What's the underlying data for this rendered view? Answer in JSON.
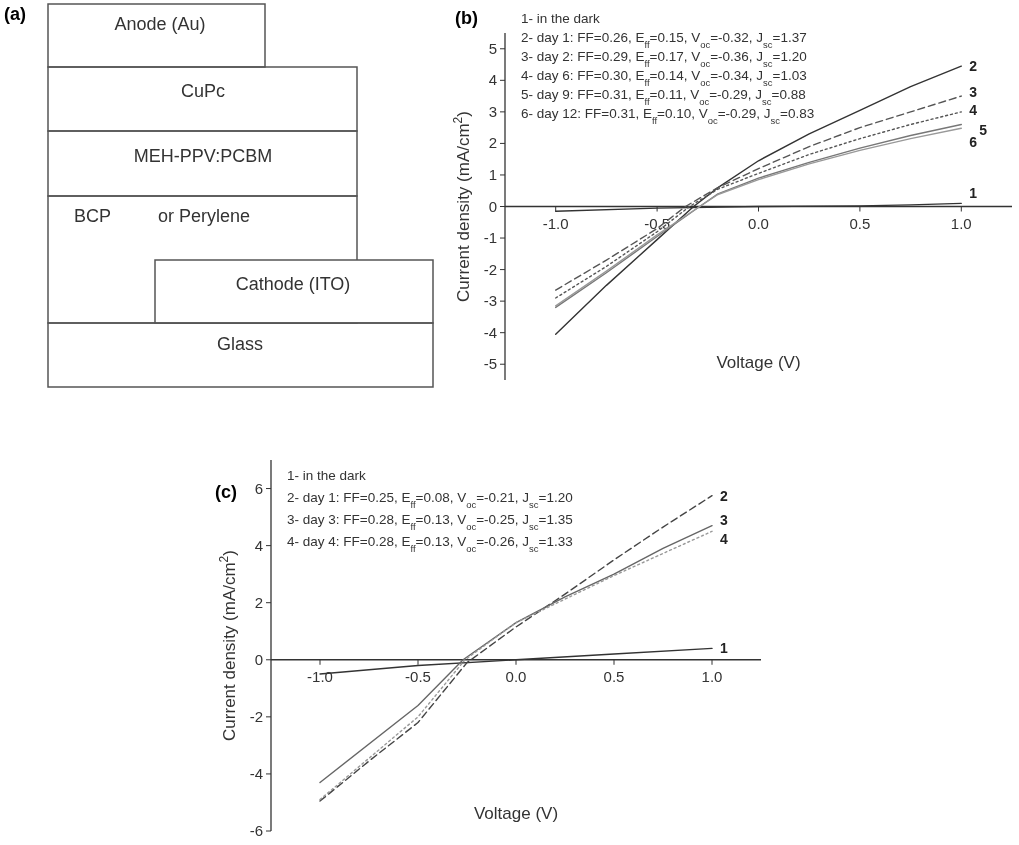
{
  "chart_data": [
    {
      "type": "other",
      "title": "(a)",
      "annotations": [
        "Anode (Au)",
        "CuPc",
        "MEH-PPV:PCBM",
        "BCP",
        "or Perylene",
        "Cathode (ITO)",
        "Glass"
      ]
    },
    {
      "type": "line",
      "title": "(b)",
      "xlabel": "Voltage (V)",
      "ylabel": "Current density (mA/cm$^{2}$)",
      "xlim": [
        -1.25,
        1.25
      ],
      "xticks": [
        {
          "value": -1,
          "label": "-1.0"
        },
        {
          "value": -0.5,
          "label": "-0.5"
        },
        {
          "value": 0,
          "label": "0.0"
        },
        {
          "value": 0.5,
          "label": "0.5"
        },
        {
          "value": 1,
          "label": "1.0"
        }
      ],
      "ylim": [
        -5.5,
        5.5
      ],
      "yticks": [
        -5,
        -4,
        -3,
        -2,
        -1,
        0,
        1,
        2,
        3,
        4,
        5
      ],
      "annotations": [
        "1- in the dark",
        "2- day 1: FF=0.26, E$_{ff}$=0.15, V$_{oc}$=-0.32, J$_{sc}$=1.37",
        "3- day 2: FF=0.29, E$_{ff}$=0.17, V$_{oc}$=-0.36, J$_{sc}$=1.20",
        "4- day 6: FF=0.30, E$_{ff}$=0.14, V$_{oc}$=-0.34, J$_{sc}$=1.03",
        "5- day 9: FF=0.31, E$_{ff}$=0.11, V$_{oc}$=-0.29, J$_{sc}$=0.88",
        "6- day 12: FF=0.31, E$_{ff}$=0.10, V$_{oc}$=-0.29, J$_{sc}$=0.83"
      ],
      "series": [
        {
          "name": "1",
          "color": "#333333",
          "line_style": "solid",
          "x": [
            -1,
            -0.5,
            0,
            0.5,
            0.75,
            1
          ],
          "values": [
            -0.15,
            -0.05,
            0,
            0.02,
            0.05,
            0.1
          ]
        },
        {
          "name": "2",
          "color": "#333333",
          "line_style": "solid",
          "x": [
            -1,
            -0.75,
            -0.5,
            -0.32,
            -0.2,
            0,
            0.25,
            0.5,
            0.75,
            1
          ],
          "values": [
            -4.05,
            -2.5,
            -1.05,
            0,
            0.6,
            1.45,
            2.3,
            3.05,
            3.8,
            4.45
          ]
        },
        {
          "name": "3",
          "color": "#555555",
          "line_style": "dashed",
          "x": [
            -1,
            -0.75,
            -0.5,
            -0.36,
            -0.2,
            0,
            0.25,
            0.5,
            0.75,
            1
          ],
          "values": [
            -2.65,
            -1.7,
            -0.7,
            0,
            0.6,
            1.2,
            1.9,
            2.5,
            3.0,
            3.5
          ]
        },
        {
          "name": "4",
          "color": "#555555",
          "line_style": "dotted",
          "x": [
            -1,
            -0.75,
            -0.5,
            -0.34,
            -0.2,
            0,
            0.25,
            0.5,
            0.75,
            1
          ],
          "values": [
            -2.9,
            -1.9,
            -0.8,
            0,
            0.55,
            1.05,
            1.65,
            2.15,
            2.6,
            3.0
          ]
        },
        {
          "name": "5",
          "color": "#777777",
          "line_style": "solid",
          "x": [
            -1,
            -0.75,
            -0.5,
            -0.29,
            -0.2,
            0,
            0.25,
            0.5,
            0.75,
            1
          ],
          "values": [
            -3.2,
            -2.1,
            -0.95,
            0,
            0.4,
            0.9,
            1.4,
            1.85,
            2.25,
            2.6
          ]
        },
        {
          "name": "6",
          "color": "#999999",
          "line_style": "solid",
          "x": [
            -1,
            -0.75,
            -0.5,
            -0.29,
            -0.2,
            0,
            0.25,
            0.5,
            0.75,
            1
          ],
          "values": [
            -3.15,
            -2.05,
            -0.9,
            0,
            0.38,
            0.85,
            1.35,
            1.78,
            2.15,
            2.48
          ]
        }
      ]
    },
    {
      "type": "line",
      "title": "(c)",
      "xlabel": "Voltage (V)",
      "ylabel": "Current density (mA/cm$^{2}$)",
      "xlim": [
        -1.25,
        1.25
      ],
      "xticks": [
        {
          "value": -1,
          "label": "-1.0"
        },
        {
          "value": -0.5,
          "label": "-0.5"
        },
        {
          "value": 0,
          "label": "0.0"
        },
        {
          "value": 0.5,
          "label": "0.5"
        },
        {
          "value": 1,
          "label": "1.0"
        }
      ],
      "ylim": [
        -6,
        7
      ],
      "yticks": [
        -6,
        -4,
        -2,
        0,
        2,
        4,
        6
      ],
      "annotations": [
        "1- in the dark",
        "2- day 1: FF=0.25, E$_{ff}$=0.08, V$_{oc}$=-0.21, J$_{sc}$=1.20",
        "3- day 3: FF=0.28, E$_{ff}$=0.13, V$_{oc}$=-0.25, J$_{sc}$=1.35",
        "4- day 4: FF=0.28, E$_{ff}$=0.13, V$_{oc}$=-0.26, J$_{sc}$=1.33"
      ],
      "series": [
        {
          "name": "1",
          "color": "#333333",
          "line_style": "solid",
          "x": [
            -1,
            -0.5,
            0,
            0.5,
            1
          ],
          "values": [
            -0.5,
            -0.2,
            0,
            0.2,
            0.4
          ]
        },
        {
          "name": "2",
          "color": "#444444",
          "line_style": "dashed",
          "x": [
            -1,
            -0.75,
            -0.5,
            -0.25,
            0,
            0.25,
            0.5,
            0.75,
            1
          ],
          "values": [
            -4.95,
            -3.55,
            -2.2,
            -0.1,
            1.15,
            2.3,
            3.5,
            4.65,
            5.75
          ]
        },
        {
          "name": "3",
          "color": "#666666",
          "line_style": "solid",
          "x": [
            -1,
            -0.5,
            -0.27,
            0,
            0.25,
            0.5,
            0.75,
            1
          ],
          "values": [
            -4.3,
            -1.6,
            0,
            1.3,
            2.2,
            3.0,
            3.9,
            4.7
          ]
        },
        {
          "name": "4",
          "color": "#999999",
          "line_style": "dotted",
          "x": [
            -1,
            -0.5,
            -0.26,
            0,
            0.5,
            1
          ],
          "values": [
            -4.9,
            -2.0,
            0,
            1.3,
            2.95,
            4.5
          ]
        }
      ]
    }
  ]
}
